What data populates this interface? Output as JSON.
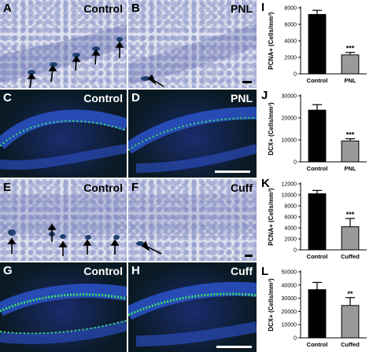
{
  "panels": {
    "A": {
      "letter": "A",
      "title": "Control"
    },
    "B": {
      "letter": "B",
      "title": "PNL"
    },
    "C": {
      "letter": "C",
      "title": "Control"
    },
    "D": {
      "letter": "D",
      "title": "PNL"
    },
    "E": {
      "letter": "E",
      "title": "Control"
    },
    "F": {
      "letter": "F",
      "title": "Cuff"
    },
    "G": {
      "letter": "G",
      "title": "Control"
    },
    "H": {
      "letter": "H",
      "title": "Cuff"
    }
  },
  "chart_data": [
    {
      "letter": "I",
      "type": "bar",
      "categories": [
        "Control",
        "PNL"
      ],
      "values": [
        7200,
        2300
      ],
      "errors": [
        500,
        300
      ],
      "ylabel": "PCNA+ (Cells/mm³)",
      "ylim": [
        0,
        8000
      ],
      "ticks": [
        0,
        2000,
        4000,
        6000,
        8000
      ],
      "significance": [
        "",
        "***"
      ],
      "colors": [
        "#000000",
        "#9a9a9a"
      ]
    },
    {
      "letter": "J",
      "type": "bar",
      "categories": [
        "Control",
        "PNL"
      ],
      "values": [
        23500,
        9500
      ],
      "errors": [
        2500,
        1000
      ],
      "ylabel": "DCX+ (Cells/mm³)",
      "ylim": [
        0,
        30000
      ],
      "ticks": [
        0,
        10000,
        20000,
        30000
      ],
      "significance": [
        "",
        "***"
      ],
      "colors": [
        "#000000",
        "#9a9a9a"
      ]
    },
    {
      "letter": "K",
      "type": "bar",
      "categories": [
        "Control",
        "Cuffed"
      ],
      "values": [
        10200,
        4200
      ],
      "errors": [
        600,
        1500
      ],
      "ylabel": "PCNA+ (Cells/mm³)",
      "ylim": [
        0,
        12000
      ],
      "ticks": [
        0,
        2000,
        4000,
        6000,
        8000,
        10000,
        12000
      ],
      "significance": [
        "",
        "***"
      ],
      "colors": [
        "#000000",
        "#9a9a9a"
      ]
    },
    {
      "letter": "L",
      "type": "bar",
      "categories": [
        "Control",
        "Cuffed"
      ],
      "values": [
        36500,
        24500
      ],
      "errors": [
        5500,
        6000
      ],
      "ylabel": "DCX+ (Cells/mm³)",
      "ylim": [
        0,
        50000
      ],
      "ticks": [
        0,
        10000,
        20000,
        30000,
        40000,
        50000
      ],
      "significance": [
        "",
        "**"
      ],
      "colors": [
        "#000000",
        "#9a9a9a"
      ]
    }
  ]
}
